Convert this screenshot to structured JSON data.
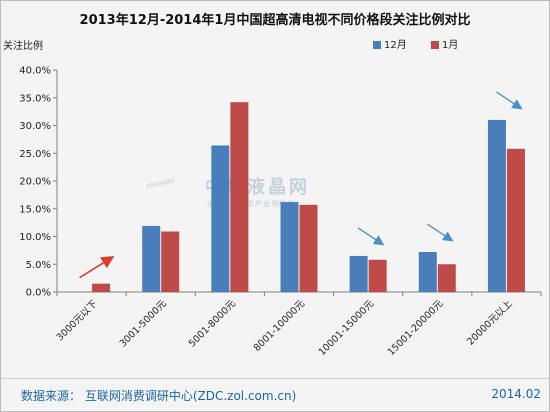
{
  "chart_data": {
    "type": "bar",
    "title": "2013年12月-2014年1月中国超高清电视不同价格段关注比例对比",
    "ylabel": "关注比例",
    "ylim": [
      0,
      40
    ],
    "yticks": [
      "0.0%",
      "5.0%",
      "10.0%",
      "15.0%",
      "20.0%",
      "25.0%",
      "30.0%",
      "35.0%",
      "40.0%"
    ],
    "categories": [
      "3000元以下",
      "3001-5000元",
      "5001-8000元",
      "8001-10000元",
      "10001-15000元",
      "15001-20000元",
      "20000元以上"
    ],
    "series": [
      {
        "name": "12月",
        "color": "#4a7ebb",
        "values": [
          0,
          11.9,
          26.4,
          16.2,
          6.5,
          7.2,
          31.0
        ]
      },
      {
        "name": "1月",
        "color": "#be4b48",
        "values": [
          1.5,
          10.9,
          34.2,
          15.7,
          5.8,
          5.0,
          25.8
        ]
      }
    ],
    "legend_position": "top-right",
    "grid": false,
    "trend_arrows": [
      "up",
      "",
      "",
      "",
      "down",
      "down",
      "down"
    ]
  },
  "watermark": {
    "brand": "中华液晶网",
    "slogan": "全球平板显示产业领航者",
    "logo_text": "FPDisplay"
  },
  "footer": {
    "source": "数据来源： 互联网消费调研中心(ZDC.zol.com.cn)",
    "date": "2014.02"
  },
  "colors": {
    "arrow": "#e03a2f",
    "arrow_down": "#4a90c8",
    "axis": "#808080"
  }
}
